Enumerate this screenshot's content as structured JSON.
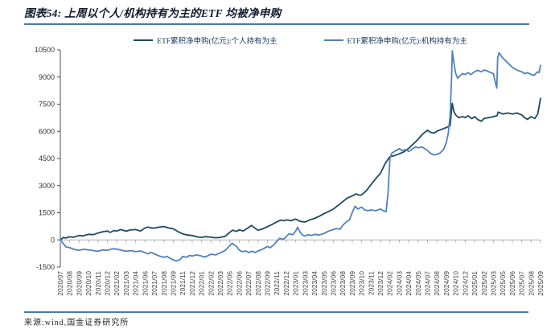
{
  "header": {
    "title": "图表54: 上周以个人/机构持有为主的ETF 均被净申购",
    "rule_color": "#4a7ba6"
  },
  "legend": {
    "items": [
      {
        "label": "ETF累积净申购(亿元):个人持有为主",
        "color": "#1c4966"
      },
      {
        "label": "ETF累积净申购(亿元):机构持有为主",
        "color": "#4f81bd"
      }
    ]
  },
  "footer": {
    "source": "来源:wind,国金证券研究所"
  },
  "chart_data": {
    "type": "line",
    "title": "上周以个人/机构持有为主的ETF 均被净申购",
    "unit": "亿元",
    "xlabel": "",
    "ylabel": "",
    "ylim": [
      -1500,
      10500
    ],
    "yticks": [
      -1500,
      0,
      1500,
      3000,
      4500,
      6000,
      7500,
      9000,
      10500
    ],
    "grid": "zero-axis-only",
    "legend_position": "top",
    "axis_color": "#4d4d4d",
    "zero_axis_color": "#b0b0b0",
    "categories": [
      "2020/07",
      "2020/08",
      "2020/09",
      "2020/10",
      "2020/11",
      "2020/12",
      "2021/02",
      "2021/03",
      "2021/04",
      "2021/06",
      "2021/07",
      "2021/08",
      "2021/09",
      "2021/11",
      "2021/12",
      "2022/01",
      "2022/02",
      "2022/03",
      "2022/05",
      "2022/06",
      "2022/07",
      "2022/08",
      "2022/09",
      "2022/11",
      "2022/12",
      "2023/01",
      "2023/03",
      "2023/04",
      "2023/05",
      "2023/06",
      "2023/08",
      "2023/09",
      "2023/10",
      "2023/11",
      "2023/12",
      "2024/02",
      "2024/03",
      "2024/04",
      "2024/05",
      "2024/07",
      "2024/08",
      "2024/09",
      "2024/10",
      "2024/12",
      "2025/01",
      "2025/02",
      "2025/03",
      "2025/05",
      "2025/06",
      "2025/07",
      "2025/08",
      "2025/09"
    ],
    "series": [
      {
        "name": "ETF累积净申购(亿元):个人持有为主",
        "color": "#1c4966",
        "points": [
          [
            0,
            0
          ],
          [
            0.3,
            130
          ],
          [
            0.6,
            110
          ],
          [
            1,
            170
          ],
          [
            1.4,
            150
          ],
          [
            2,
            240
          ],
          [
            2.4,
            220
          ],
          [
            3,
            310
          ],
          [
            3.5,
            290
          ],
          [
            4,
            380
          ],
          [
            4.5,
            450
          ],
          [
            5,
            490
          ],
          [
            5.3,
            410
          ],
          [
            5.7,
            520
          ],
          [
            6,
            490
          ],
          [
            6.4,
            570
          ],
          [
            7,
            480
          ],
          [
            7.4,
            550
          ],
          [
            8,
            570
          ],
          [
            8.5,
            490
          ],
          [
            9,
            660
          ],
          [
            9.3,
            710
          ],
          [
            9.6,
            670
          ],
          [
            10,
            650
          ],
          [
            10.4,
            700
          ],
          [
            11,
            740
          ],
          [
            11.5,
            660
          ],
          [
            12,
            610
          ],
          [
            12.5,
            460
          ],
          [
            13,
            330
          ],
          [
            13.5,
            270
          ],
          [
            14,
            240
          ],
          [
            14.5,
            170
          ],
          [
            15,
            140
          ],
          [
            15.4,
            180
          ],
          [
            16,
            150
          ],
          [
            16.5,
            120
          ],
          [
            17,
            140
          ],
          [
            17.5,
            200
          ],
          [
            18,
            420
          ],
          [
            18.3,
            540
          ],
          [
            18.7,
            470
          ],
          [
            19,
            560
          ],
          [
            19.4,
            490
          ],
          [
            20,
            690
          ],
          [
            20.3,
            800
          ],
          [
            20.7,
            640
          ],
          [
            21,
            530
          ],
          [
            21.5,
            610
          ],
          [
            22,
            730
          ],
          [
            22.5,
            860
          ],
          [
            23,
            1000
          ],
          [
            23.4,
            1090
          ],
          [
            23.8,
            1060
          ],
          [
            24,
            1110
          ],
          [
            24.5,
            1060
          ],
          [
            25,
            1150
          ],
          [
            25.5,
            1020
          ],
          [
            26,
            990
          ],
          [
            26.5,
            1110
          ],
          [
            27,
            1190
          ],
          [
            27.5,
            1310
          ],
          [
            28,
            1450
          ],
          [
            28.5,
            1570
          ],
          [
            29,
            1710
          ],
          [
            29.5,
            1910
          ],
          [
            30,
            2120
          ],
          [
            30.5,
            2320
          ],
          [
            31,
            2430
          ],
          [
            31.4,
            2540
          ],
          [
            31.8,
            2470
          ],
          [
            32,
            2490
          ],
          [
            32.5,
            2720
          ],
          [
            33,
            3060
          ],
          [
            33.5,
            3380
          ],
          [
            34,
            3680
          ],
          [
            34.5,
            4230
          ],
          [
            35,
            4600
          ],
          [
            35.4,
            4640
          ],
          [
            36,
            4760
          ],
          [
            36.5,
            4870
          ],
          [
            37,
            5060
          ],
          [
            37.5,
            5310
          ],
          [
            38,
            5560
          ],
          [
            38.5,
            5860
          ],
          [
            39,
            6060
          ],
          [
            39.3,
            5950
          ],
          [
            39.7,
            5900
          ],
          [
            40,
            6010
          ],
          [
            40.5,
            6110
          ],
          [
            41,
            6210
          ],
          [
            41.4,
            6320
          ],
          [
            41.62,
            7550
          ],
          [
            41.8,
            7090
          ],
          [
            42,
            6900
          ],
          [
            42.3,
            6760
          ],
          [
            42.7,
            6810
          ],
          [
            43,
            6760
          ],
          [
            43.3,
            6860
          ],
          [
            43.7,
            6700
          ],
          [
            44,
            6810
          ],
          [
            44.3,
            6660
          ],
          [
            44.7,
            6560
          ],
          [
            45,
            6710
          ],
          [
            45.5,
            6760
          ],
          [
            46,
            6810
          ],
          [
            46.38,
            6860
          ],
          [
            46.5,
            7060
          ],
          [
            47,
            6960
          ],
          [
            47.5,
            7010
          ],
          [
            48,
            6960
          ],
          [
            48.5,
            7010
          ],
          [
            49,
            6910
          ],
          [
            49.3,
            6760
          ],
          [
            49.6,
            6660
          ],
          [
            50,
            6810
          ],
          [
            50.4,
            6710
          ],
          [
            50.7,
            6960
          ],
          [
            51,
            7820
          ]
        ]
      },
      {
        "name": "ETF累积净申购(亿元):机构持有为主",
        "color": "#4f81bd",
        "points": [
          [
            0,
            0
          ],
          [
            0.25,
            -160
          ],
          [
            0.6,
            -390
          ],
          [
            1,
            -430
          ],
          [
            1.5,
            -530
          ],
          [
            2,
            -570
          ],
          [
            2.5,
            -520
          ],
          [
            3,
            -550
          ],
          [
            3.5,
            -590
          ],
          [
            4,
            -630
          ],
          [
            4.5,
            -550
          ],
          [
            5,
            -570
          ],
          [
            5.5,
            -490
          ],
          [
            6,
            -510
          ],
          [
            6.5,
            -570
          ],
          [
            7,
            -630
          ],
          [
            7.5,
            -590
          ],
          [
            8,
            -650
          ],
          [
            8.5,
            -610
          ],
          [
            9,
            -710
          ],
          [
            9.3,
            -770
          ],
          [
            9.6,
            -690
          ],
          [
            10,
            -770
          ],
          [
            10.5,
            -890
          ],
          [
            11,
            -960
          ],
          [
            11.3,
            -910
          ],
          [
            11.7,
            -1030
          ],
          [
            12,
            -1110
          ],
          [
            12.3,
            -1160
          ],
          [
            12.7,
            -1090
          ],
          [
            13,
            -910
          ],
          [
            13.4,
            -960
          ],
          [
            13.7,
            -860
          ],
          [
            14,
            -890
          ],
          [
            14.5,
            -830
          ],
          [
            15,
            -890
          ],
          [
            15.3,
            -950
          ],
          [
            15.7,
            -870
          ],
          [
            16,
            -790
          ],
          [
            16.5,
            -830
          ],
          [
            17,
            -710
          ],
          [
            17.5,
            -590
          ],
          [
            18,
            -310
          ],
          [
            18.25,
            -190
          ],
          [
            18.7,
            -360
          ],
          [
            19,
            -560
          ],
          [
            19.3,
            -650
          ],
          [
            19.7,
            -610
          ],
          [
            20,
            -700
          ],
          [
            20.3,
            -630
          ],
          [
            20.7,
            -690
          ],
          [
            21,
            -610
          ],
          [
            21.5,
            -510
          ],
          [
            22,
            -360
          ],
          [
            22.3,
            -430
          ],
          [
            22.7,
            -260
          ],
          [
            23,
            -70
          ],
          [
            23.3,
            90
          ],
          [
            23.7,
            30
          ],
          [
            24,
            190
          ],
          [
            24.3,
            340
          ],
          [
            24.7,
            290
          ],
          [
            25,
            490
          ],
          [
            25.2,
            700
          ],
          [
            25.5,
            390
          ],
          [
            25.8,
            240
          ],
          [
            26,
            210
          ],
          [
            26.3,
            290
          ],
          [
            26.7,
            240
          ],
          [
            27,
            310
          ],
          [
            27.5,
            270
          ],
          [
            28,
            360
          ],
          [
            28.5,
            490
          ],
          [
            29,
            570
          ],
          [
            29.3,
            630
          ],
          [
            29.7,
            590
          ],
          [
            30,
            810
          ],
          [
            30.3,
            960
          ],
          [
            30.7,
            1110
          ],
          [
            31,
            1510
          ],
          [
            31.3,
            1860
          ],
          [
            31.6,
            1710
          ],
          [
            32,
            1810
          ],
          [
            32.3,
            1660
          ],
          [
            32.7,
            1610
          ],
          [
            33,
            1660
          ],
          [
            33.5,
            1610
          ],
          [
            34,
            1710
          ],
          [
            34.3,
            1610
          ],
          [
            34.6,
            1560
          ],
          [
            34.8,
            2600
          ],
          [
            35,
            4480
          ],
          [
            35.2,
            4790
          ],
          [
            35.5,
            4890
          ],
          [
            36,
            5040
          ],
          [
            36.3,
            4940
          ],
          [
            36.7,
            4990
          ],
          [
            37,
            4890
          ],
          [
            37.3,
            4990
          ],
          [
            37.7,
            5140
          ],
          [
            38,
            5090
          ],
          [
            38.4,
            5140
          ],
          [
            38.7,
            5040
          ],
          [
            39,
            4940
          ],
          [
            39.3,
            4790
          ],
          [
            39.7,
            4690
          ],
          [
            40,
            4740
          ],
          [
            40.3,
            4790
          ],
          [
            40.7,
            4990
          ],
          [
            41,
            5390
          ],
          [
            41.2,
            5890
          ],
          [
            41.4,
            6890
          ],
          [
            41.55,
            8990
          ],
          [
            41.63,
            10450
          ],
          [
            41.85,
            9590
          ],
          [
            42,
            9190
          ],
          [
            42.2,
            8940
          ],
          [
            42.5,
            9090
          ],
          [
            42.7,
            9190
          ],
          [
            43,
            9140
          ],
          [
            43.3,
            9240
          ],
          [
            43.6,
            9140
          ],
          [
            44,
            9290
          ],
          [
            44.3,
            9370
          ],
          [
            44.7,
            9290
          ],
          [
            45,
            9390
          ],
          [
            45.3,
            9340
          ],
          [
            45.7,
            9240
          ],
          [
            46,
            9190
          ],
          [
            46.2,
            8690
          ],
          [
            46.35,
            8390
          ],
          [
            46.45,
            10040
          ],
          [
            46.6,
            10340
          ],
          [
            46.8,
            10190
          ],
          [
            47,
            10040
          ],
          [
            47.3,
            9890
          ],
          [
            47.6,
            9740
          ],
          [
            48,
            9540
          ],
          [
            48.3,
            9440
          ],
          [
            48.7,
            9340
          ],
          [
            49,
            9290
          ],
          [
            49.3,
            9190
          ],
          [
            49.6,
            9240
          ],
          [
            50,
            9140
          ],
          [
            50.3,
            9090
          ],
          [
            50.7,
            9290
          ],
          [
            50.85,
            9240
          ],
          [
            51,
            9640
          ]
        ]
      }
    ]
  }
}
